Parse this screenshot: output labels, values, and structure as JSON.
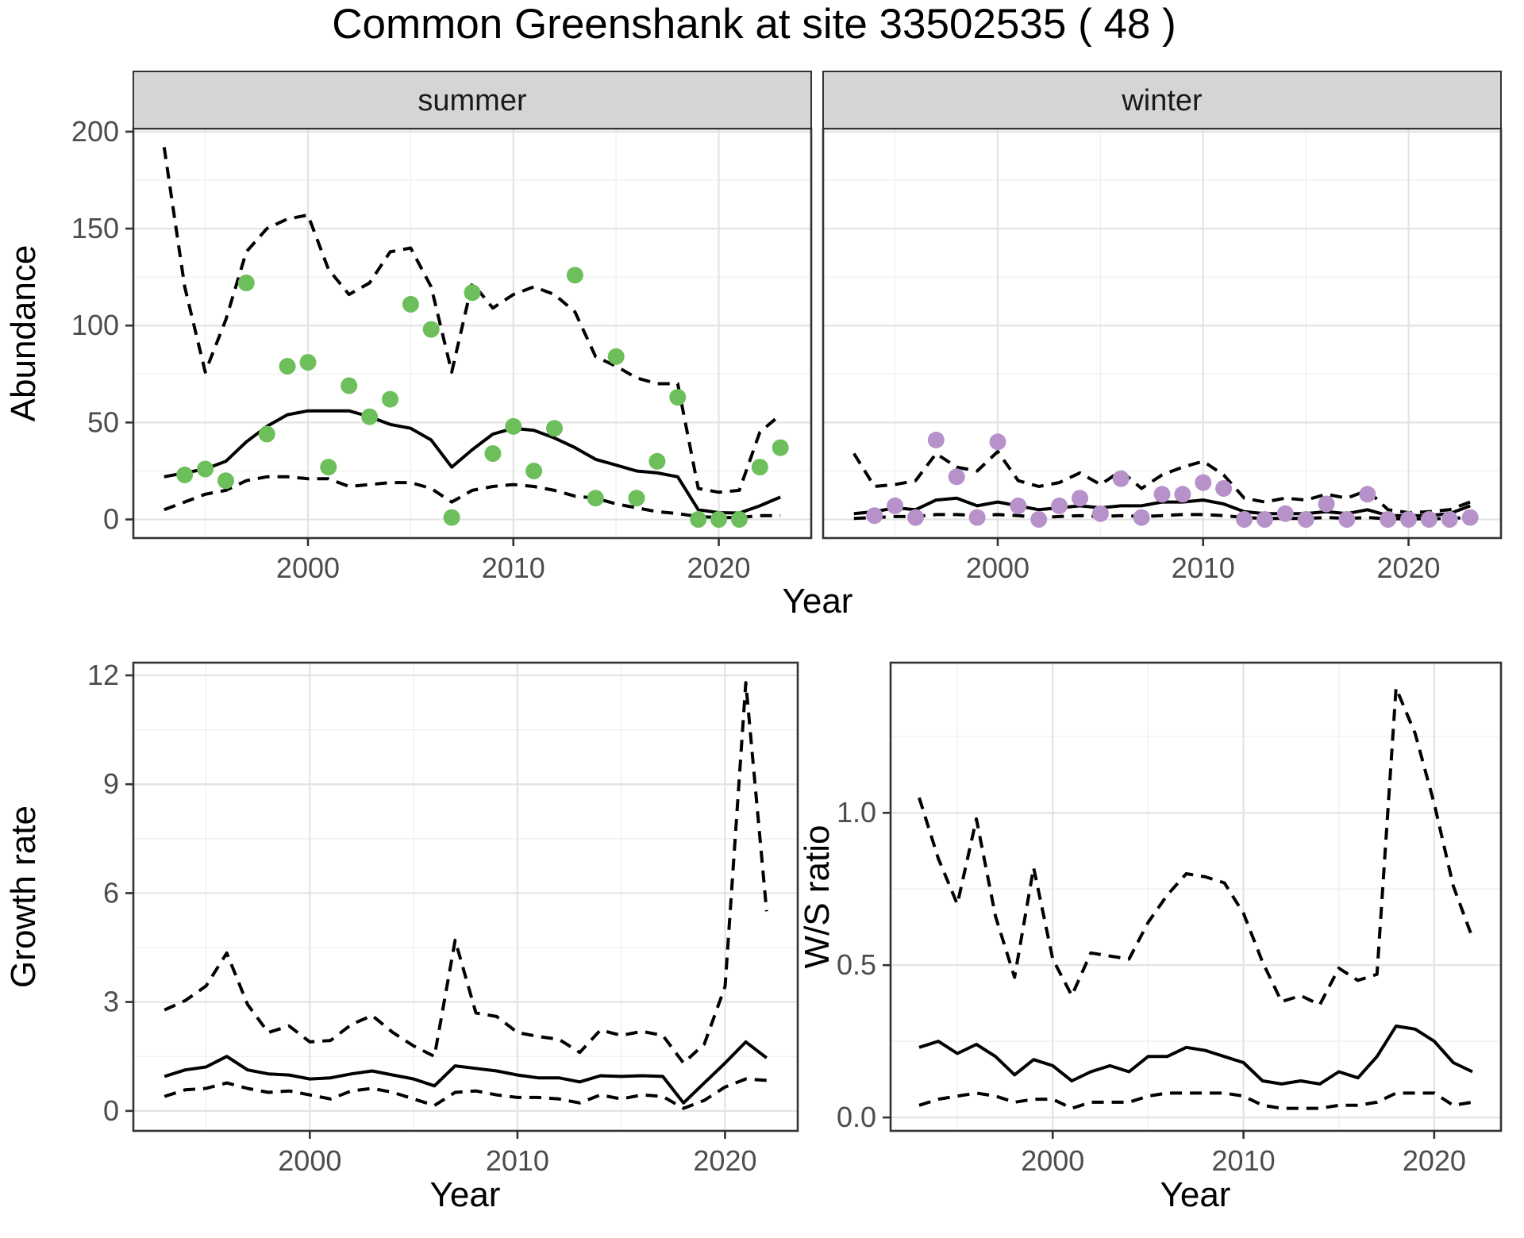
{
  "title": "Common Greenshank at site 33502535 ( 48 )",
  "axis_labels": {
    "abundance": "Abundance",
    "year": "Year",
    "growth": "Growth rate",
    "ws": "W/S ratio"
  },
  "colors": {
    "summer_points": "#6cbf5a",
    "winter_points": "#b791c9",
    "line": "#000000",
    "strip_background": "#d5d5d5",
    "grid_major": "#e3e3e3",
    "tick_text": "#4d4d4d"
  },
  "chart_data": [
    {
      "id": "abundance-summer",
      "type": "line",
      "facet_label": "summer",
      "xlabel": "Year",
      "ylabel": "Abundance",
      "x_start": 1993,
      "xlim": [
        1991.5,
        2024.5
      ],
      "ylim": [
        -9.6,
        201.6
      ],
      "xticks": {
        "values": [
          2000,
          2010,
          2020
        ],
        "labels": [
          "2000",
          "2010",
          "2020"
        ]
      },
      "yticks": {
        "values": [
          0,
          50,
          100,
          150,
          200
        ],
        "labels": [
          "0",
          "50",
          "100",
          "150",
          "200"
        ]
      },
      "grid": true,
      "legend": "none",
      "series": [
        {
          "name": "mean",
          "style": "solid",
          "values": [
            22,
            24,
            26,
            30,
            40,
            48,
            54,
            56,
            56,
            56,
            53,
            49,
            47,
            41,
            27,
            36,
            44,
            47,
            46,
            42,
            37,
            31,
            28,
            25,
            24,
            22,
            5,
            3.5,
            3.3,
            7,
            11.5
          ]
        },
        {
          "name": "upper-ci",
          "style": "dashed",
          "values": [
            192,
            120,
            76,
            103,
            138,
            150,
            155,
            157,
            129,
            116,
            122,
            138,
            140,
            120,
            76,
            122,
            109,
            116,
            120,
            116,
            107,
            84,
            79,
            73,
            70,
            70,
            16,
            14,
            15,
            45,
            54
          ]
        },
        {
          "name": "lower-ci",
          "style": "dashed",
          "values": [
            5,
            9,
            13,
            15,
            20,
            22,
            22,
            21,
            21,
            17,
            18,
            19,
            19,
            16,
            9,
            15,
            17,
            18,
            17,
            15,
            12,
            11,
            8,
            6,
            4,
            3,
            1.5,
            1,
            1,
            2,
            2
          ]
        }
      ],
      "points": {
        "name": "observed-counts",
        "color": "#6cbf5a",
        "x_start": 1994,
        "values": [
          23,
          26,
          20,
          122,
          44,
          79,
          81,
          27,
          69,
          53,
          62,
          111,
          98,
          1,
          117,
          34,
          48,
          25,
          47,
          126,
          11,
          84,
          11,
          30,
          63,
          0,
          0,
          0,
          27,
          37
        ]
      }
    },
    {
      "id": "abundance-winter",
      "type": "line",
      "facet_label": "winter",
      "xlabel": "Year",
      "ylabel": "Abundance",
      "x_start": 1993,
      "xlim": [
        1991.5,
        2024.5
      ],
      "ylim": [
        -9.6,
        201.6
      ],
      "xticks": {
        "values": [
          2000,
          2010,
          2020
        ],
        "labels": [
          "2000",
          "2010",
          "2020"
        ]
      },
      "yticks": {
        "values": [
          0,
          50,
          100,
          150,
          200
        ],
        "labels": [
          "0",
          "50",
          "100",
          "150",
          "200"
        ]
      },
      "grid": true,
      "legend": "none",
      "series": [
        {
          "name": "mean",
          "style": "solid",
          "values": [
            3,
            4,
            6,
            5,
            10,
            11,
            7,
            9,
            7,
            5,
            6,
            7,
            6,
            7,
            7,
            9,
            9,
            10,
            8,
            4,
            3,
            3,
            3,
            4,
            3,
            5,
            2,
            2,
            2,
            3,
            7
          ]
        },
        {
          "name": "upper-ci",
          "style": "dashed",
          "values": [
            34,
            17,
            18,
            20,
            34,
            27,
            25,
            35,
            20,
            17,
            19,
            24,
            18,
            25,
            16,
            23,
            27,
            30,
            23,
            11,
            9,
            11,
            10,
            13,
            11,
            15,
            5,
            3.5,
            4,
            5,
            9
          ]
        },
        {
          "name": "lower-ci",
          "style": "dashed",
          "values": [
            0.5,
            1,
            1.5,
            1.5,
            2.5,
            2.5,
            2,
            2.5,
            2,
            1,
            1.5,
            2,
            1.5,
            2,
            1.5,
            2,
            2.5,
            2.5,
            2,
            1,
            0.5,
            0.5,
            0.5,
            1,
            0.5,
            1,
            0.3,
            0.3,
            0.3,
            0.5,
            1
          ]
        }
      ],
      "points": {
        "name": "observed-counts",
        "color": "#b791c9",
        "x_start": 1994,
        "values": [
          2,
          7,
          1,
          41,
          22,
          1,
          40,
          7,
          0,
          7,
          11,
          3,
          21,
          1,
          13,
          13,
          19,
          16,
          0,
          0,
          3,
          0,
          8,
          0,
          13,
          0,
          0,
          0,
          0,
          1
        ]
      }
    },
    {
      "id": "growth-rate",
      "type": "line",
      "facet_label": "",
      "xlabel": "Year",
      "ylabel": "Growth rate",
      "x_start": 1993,
      "xlim": [
        1991.5,
        2023.5
      ],
      "ylim": [
        -0.55,
        12.35
      ],
      "xticks": {
        "values": [
          2000,
          2010,
          2020
        ],
        "labels": [
          "2000",
          "2010",
          "2020"
        ]
      },
      "yticks": {
        "values": [
          0,
          3,
          6,
          9,
          12
        ],
        "labels": [
          "0",
          "3",
          "6",
          "9",
          "12"
        ]
      },
      "grid": true,
      "legend": "none",
      "series": [
        {
          "name": "mean",
          "style": "solid",
          "values": [
            0.95,
            1.13,
            1.21,
            1.5,
            1.13,
            1.02,
            0.99,
            0.88,
            0.91,
            1.02,
            1.1,
            0.99,
            0.88,
            0.69,
            1.24,
            1.17,
            1.1,
            0.99,
            0.91,
            0.91,
            0.8,
            0.97,
            0.95,
            0.97,
            0.95,
            0.22,
            0.77,
            1.32,
            1.9,
            1.46
          ]
        },
        {
          "name": "upper-ci",
          "style": "dashed",
          "values": [
            2.78,
            3.04,
            3.44,
            4.35,
            2.93,
            2.16,
            2.34,
            1.9,
            1.94,
            2.38,
            2.63,
            2.16,
            1.79,
            1.5,
            4.7,
            2.7,
            2.6,
            2.16,
            2.05,
            1.97,
            1.61,
            2.23,
            2.08,
            2.19,
            2.08,
            1.32,
            1.84,
            3.43,
            11.8,
            5.5
          ]
        },
        {
          "name": "lower-ci",
          "style": "dashed",
          "values": [
            0.4,
            0.58,
            0.62,
            0.77,
            0.62,
            0.51,
            0.55,
            0.44,
            0.33,
            0.55,
            0.62,
            0.51,
            0.33,
            0.15,
            0.51,
            0.55,
            0.44,
            0.37,
            0.37,
            0.33,
            0.22,
            0.44,
            0.33,
            0.44,
            0.4,
            0.07,
            0.29,
            0.66,
            0.88,
            0.84
          ]
        }
      ]
    },
    {
      "id": "ws-ratio",
      "type": "line",
      "facet_label": "",
      "xlabel": "Year",
      "ylabel": "W/S ratio",
      "x_start": 1993,
      "xlim": [
        1991.5,
        2023.5
      ],
      "ylim": [
        -0.044,
        1.493
      ],
      "xticks": {
        "values": [
          2000,
          2010,
          2020
        ],
        "labels": [
          "2000",
          "2010",
          "2020"
        ]
      },
      "yticks": {
        "values": [
          0,
          0.5,
          1
        ],
        "labels": [
          "0.0",
          "0.5",
          "1.0"
        ]
      },
      "grid": true,
      "legend": "none",
      "series": [
        {
          "name": "mean",
          "style": "solid",
          "values": [
            0.23,
            0.25,
            0.21,
            0.24,
            0.2,
            0.14,
            0.19,
            0.17,
            0.12,
            0.15,
            0.17,
            0.15,
            0.2,
            0.2,
            0.23,
            0.22,
            0.2,
            0.18,
            0.12,
            0.11,
            0.12,
            0.11,
            0.15,
            0.13,
            0.2,
            0.3,
            0.29,
            0.25,
            0.18,
            0.15
          ]
        },
        {
          "name": "upper-ci",
          "style": "dashed",
          "values": [
            1.05,
            0.85,
            0.7,
            0.98,
            0.66,
            0.46,
            0.82,
            0.52,
            0.4,
            0.54,
            0.53,
            0.52,
            0.64,
            0.73,
            0.8,
            0.79,
            0.77,
            0.67,
            0.51,
            0.38,
            0.4,
            0.37,
            0.49,
            0.45,
            0.47,
            1.41,
            1.26,
            1.03,
            0.76,
            0.59
          ]
        },
        {
          "name": "lower-ci",
          "style": "dashed",
          "values": [
            0.04,
            0.06,
            0.07,
            0.08,
            0.07,
            0.05,
            0.06,
            0.06,
            0.03,
            0.05,
            0.05,
            0.05,
            0.07,
            0.08,
            0.08,
            0.08,
            0.08,
            0.07,
            0.04,
            0.03,
            0.03,
            0.03,
            0.04,
            0.04,
            0.05,
            0.08,
            0.08,
            0.08,
            0.04,
            0.05
          ]
        }
      ]
    }
  ]
}
